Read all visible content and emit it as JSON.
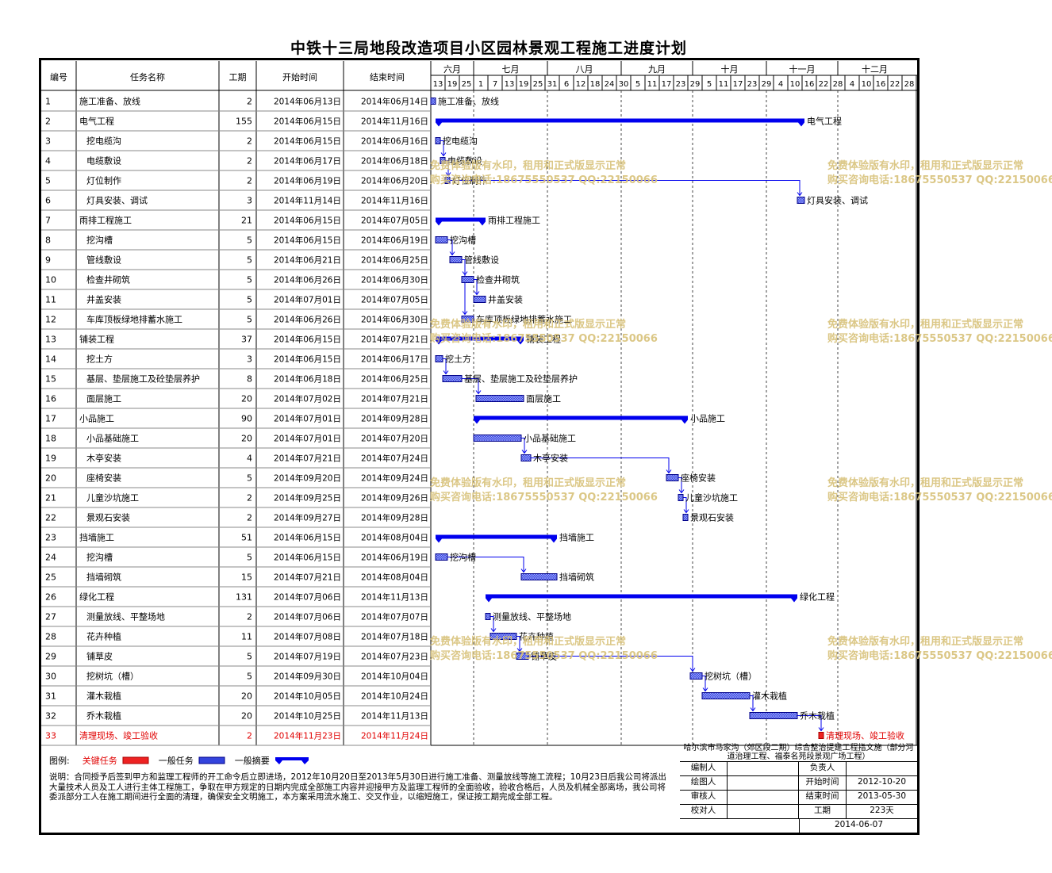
{
  "title": "中铁十三局地段改造项目小区园林景观工程施工进度计划",
  "columns": {
    "id": "编号",
    "name": "任务名称",
    "duration": "工期",
    "start": "开始时间",
    "end": "结束时间"
  },
  "months": [
    "六月",
    "七月",
    "八月",
    "九月",
    "十月",
    "十一月",
    "十二月"
  ],
  "week_ticks": [
    "13",
    "19",
    "25",
    "1",
    "7",
    "13",
    "19",
    "25",
    "31",
    "6",
    "12",
    "18",
    "24",
    "30",
    "5",
    "11",
    "17",
    "23",
    "29",
    "5",
    "11",
    "17",
    "23",
    "29",
    "4",
    "10",
    "16",
    "22",
    "28",
    "4",
    "10",
    "16",
    "22",
    "28"
  ],
  "chart_data": {
    "type": "gantt",
    "timeline_start": "2014-06-13",
    "timeline_end": "2014-12-31",
    "tasks": [
      {
        "id": "1",
        "name": "施工准备、放线",
        "duration": "2",
        "start": "2014年06月13日",
        "end": "2014年06月14日",
        "s": "2014-06-13",
        "e": "2014-06-14",
        "kind": "task",
        "indent": false
      },
      {
        "id": "2",
        "name": "电气工程",
        "duration": "155",
        "start": "2014年06月15日",
        "end": "2014年11月16日",
        "s": "2014-06-15",
        "e": "2014-11-16",
        "kind": "summary",
        "indent": false
      },
      {
        "id": "3",
        "name": "挖电缆沟",
        "duration": "2",
        "start": "2014年06月15日",
        "end": "2014年06月16日",
        "s": "2014-06-15",
        "e": "2014-06-16",
        "kind": "task",
        "indent": true
      },
      {
        "id": "4",
        "name": "电缆敷设",
        "duration": "2",
        "start": "2014年06月17日",
        "end": "2014年06月18日",
        "s": "2014-06-17",
        "e": "2014-06-18",
        "kind": "task",
        "indent": true
      },
      {
        "id": "5",
        "name": "灯位制作",
        "duration": "2",
        "start": "2014年06月19日",
        "end": "2014年06月20日",
        "s": "2014-06-19",
        "e": "2014-06-20",
        "kind": "task",
        "indent": true
      },
      {
        "id": "6",
        "name": "灯具安装、调试",
        "duration": "3",
        "start": "2014年11月14日",
        "end": "2014年11月16日",
        "s": "2014-11-14",
        "e": "2014-11-16",
        "kind": "task",
        "indent": true
      },
      {
        "id": "7",
        "name": "雨排工程施工",
        "duration": "21",
        "start": "2014年06月15日",
        "end": "2014年07月05日",
        "s": "2014-06-15",
        "e": "2014-07-05",
        "kind": "summary",
        "indent": false
      },
      {
        "id": "8",
        "name": "挖沟槽",
        "duration": "5",
        "start": "2014年06月15日",
        "end": "2014年06月19日",
        "s": "2014-06-15",
        "e": "2014-06-19",
        "kind": "task",
        "indent": true
      },
      {
        "id": "9",
        "name": "管线敷设",
        "duration": "5",
        "start": "2014年06月21日",
        "end": "2014年06月25日",
        "s": "2014-06-21",
        "e": "2014-06-25",
        "kind": "task",
        "indent": true
      },
      {
        "id": "10",
        "name": "检查井砌筑",
        "duration": "5",
        "start": "2014年06月26日",
        "end": "2014年06月30日",
        "s": "2014-06-26",
        "e": "2014-06-30",
        "kind": "task",
        "indent": true
      },
      {
        "id": "11",
        "name": "井盖安装",
        "duration": "5",
        "start": "2014年07月01日",
        "end": "2014年07月05日",
        "s": "2014-07-01",
        "e": "2014-07-05",
        "kind": "task",
        "indent": true
      },
      {
        "id": "12",
        "name": "车库顶板绿地排蓄水施工",
        "duration": "5",
        "start": "2014年06月26日",
        "end": "2014年06月30日",
        "s": "2014-06-26",
        "e": "2014-06-30",
        "kind": "task",
        "indent": true
      },
      {
        "id": "13",
        "name": "铺装工程",
        "duration": "37",
        "start": "2014年06月15日",
        "end": "2014年07月21日",
        "s": "2014-06-15",
        "e": "2014-07-21",
        "kind": "summary",
        "indent": false
      },
      {
        "id": "14",
        "name": "挖土方",
        "duration": "3",
        "start": "2014年06月15日",
        "end": "2014年06月17日",
        "s": "2014-06-15",
        "e": "2014-06-17",
        "kind": "task",
        "indent": true
      },
      {
        "id": "15",
        "name": "基层、垫层施工及砼垫层养护",
        "duration": "8",
        "start": "2014年06月18日",
        "end": "2014年06月25日",
        "s": "2014-06-18",
        "e": "2014-06-25",
        "kind": "task",
        "indent": true
      },
      {
        "id": "16",
        "name": "面层施工",
        "duration": "20",
        "start": "2014年07月02日",
        "end": "2014年07月21日",
        "s": "2014-07-02",
        "e": "2014-07-21",
        "kind": "task",
        "indent": true
      },
      {
        "id": "17",
        "name": "小品施工",
        "duration": "90",
        "start": "2014年07月01日",
        "end": "2014年09月28日",
        "s": "2014-07-01",
        "e": "2014-09-28",
        "kind": "summary",
        "indent": false
      },
      {
        "id": "18",
        "name": "小品基础施工",
        "duration": "20",
        "start": "2014年07月01日",
        "end": "2014年07月20日",
        "s": "2014-07-01",
        "e": "2014-07-20",
        "kind": "task",
        "indent": true
      },
      {
        "id": "19",
        "name": "木亭安装",
        "duration": "4",
        "start": "2014年07月21日",
        "end": "2014年07月24日",
        "s": "2014-07-21",
        "e": "2014-07-24",
        "kind": "task",
        "indent": true
      },
      {
        "id": "20",
        "name": "座椅安装",
        "duration": "5",
        "start": "2014年09月20日",
        "end": "2014年09月24日",
        "s": "2014-09-20",
        "e": "2014-09-24",
        "kind": "task",
        "indent": true
      },
      {
        "id": "21",
        "name": "儿童沙坑施工",
        "duration": "2",
        "start": "2014年09月25日",
        "end": "2014年09月26日",
        "s": "2014-09-25",
        "e": "2014-09-26",
        "kind": "task",
        "indent": true
      },
      {
        "id": "22",
        "name": "景观石安装",
        "duration": "2",
        "start": "2014年09月27日",
        "end": "2014年09月28日",
        "s": "2014-09-27",
        "e": "2014-09-28",
        "kind": "task",
        "indent": true
      },
      {
        "id": "23",
        "name": "挡墙施工",
        "duration": "51",
        "start": "2014年06月15日",
        "end": "2014年08月04日",
        "s": "2014-06-15",
        "e": "2014-08-04",
        "kind": "summary",
        "indent": false
      },
      {
        "id": "24",
        "name": "挖沟槽",
        "duration": "5",
        "start": "2014年06月15日",
        "end": "2014年06月19日",
        "s": "2014-06-15",
        "e": "2014-06-19",
        "kind": "task",
        "indent": true
      },
      {
        "id": "25",
        "name": "挡墙砌筑",
        "duration": "15",
        "start": "2014年07月21日",
        "end": "2014年08月04日",
        "s": "2014-07-21",
        "e": "2014-08-04",
        "kind": "task",
        "indent": true
      },
      {
        "id": "26",
        "name": "绿化工程",
        "duration": "131",
        "start": "2014年07月06日",
        "end": "2014年11月13日",
        "s": "2014-07-06",
        "e": "2014-11-13",
        "kind": "summary",
        "indent": false
      },
      {
        "id": "27",
        "name": "测量放线、平整场地",
        "duration": "2",
        "start": "2014年07月06日",
        "end": "2014年07月07日",
        "s": "2014-07-06",
        "e": "2014-07-07",
        "kind": "task",
        "indent": true
      },
      {
        "id": "28",
        "name": "花卉种植",
        "duration": "11",
        "start": "2014年07月08日",
        "end": "2014年07月18日",
        "s": "2014-07-08",
        "e": "2014-07-18",
        "kind": "task",
        "indent": true
      },
      {
        "id": "29",
        "name": "铺草皮",
        "duration": "5",
        "start": "2014年07月19日",
        "end": "2014年07月23日",
        "s": "2014-07-19",
        "e": "2014-07-23",
        "kind": "task",
        "indent": true
      },
      {
        "id": "30",
        "name": "挖树坑（槽）",
        "duration": "5",
        "start": "2014年09月30日",
        "end": "2014年10月04日",
        "s": "2014-09-30",
        "e": "2014-10-04",
        "kind": "task",
        "indent": true
      },
      {
        "id": "31",
        "name": "灌木栽植",
        "duration": "20",
        "start": "2014年10月05日",
        "end": "2014年10月24日",
        "s": "2014-10-05",
        "e": "2014-10-24",
        "kind": "task",
        "indent": true
      },
      {
        "id": "32",
        "name": "乔木栽植",
        "duration": "20",
        "start": "2014年10月25日",
        "end": "2014年11月13日",
        "s": "2014-10-25",
        "e": "2014-11-13",
        "kind": "task",
        "indent": true
      },
      {
        "id": "33",
        "name": "清理现场、竣工验收",
        "duration": "2",
        "start": "2014年11月23日",
        "end": "2014年11月24日",
        "s": "2014-11-23",
        "e": "2014-11-24",
        "kind": "critical",
        "indent": false
      }
    ]
  },
  "watermark": {
    "line1": "免费体验版有水印，租用和正式版显示正常",
    "line2": "购买咨询电话:18675550537 QQ:22150066"
  },
  "legend": {
    "label": "图例:",
    "critical": "关键任务",
    "normal": "一般任务",
    "summary": "一般摘要"
  },
  "note": "说明：合同授予后签到甲方和监理工程师的开工命令后立即进场，2012年10月20日至2013年5月30日进行施工准备、测量放线等施工流程；10月23日后我公司将派出大量技术人员及工人进行主体工程施工，争取在甲方规定的日期内完成全部施工内容并迎接甲方及监理工程师的全面验收，验收合格后，人员及机械全部离场，我公司将委派部分工人在施工期间进行全面的清理，确保安全文明施工，本方案采用流水施工、交叉作业，以缩短施工，保证按工期完成全部工程。",
  "info": {
    "org": "哈尔滨市马家沟（郊区段二期）综合整治提建工程指文施（部分河道治理工程、福泰名苑段景观广场工程）",
    "editor_label": "编制人",
    "editor": "",
    "owner_label": "负责人",
    "owner": "",
    "drawer_label": "绘图人",
    "drawer": "",
    "start_label": "开始时间",
    "start": "2012-10-20",
    "reviewer_label": "审核人",
    "reviewer": "",
    "end_label": "结束时间",
    "end": "2013-05-30",
    "checker_label": "校对人",
    "checker": "",
    "period_label": "工期",
    "period": "223天",
    "date": "2014-06-07"
  },
  "colors": {
    "bar": "#0000ee",
    "critical": "#ee2222",
    "link": "#0000ee",
    "watermark": "#d8c27a"
  }
}
